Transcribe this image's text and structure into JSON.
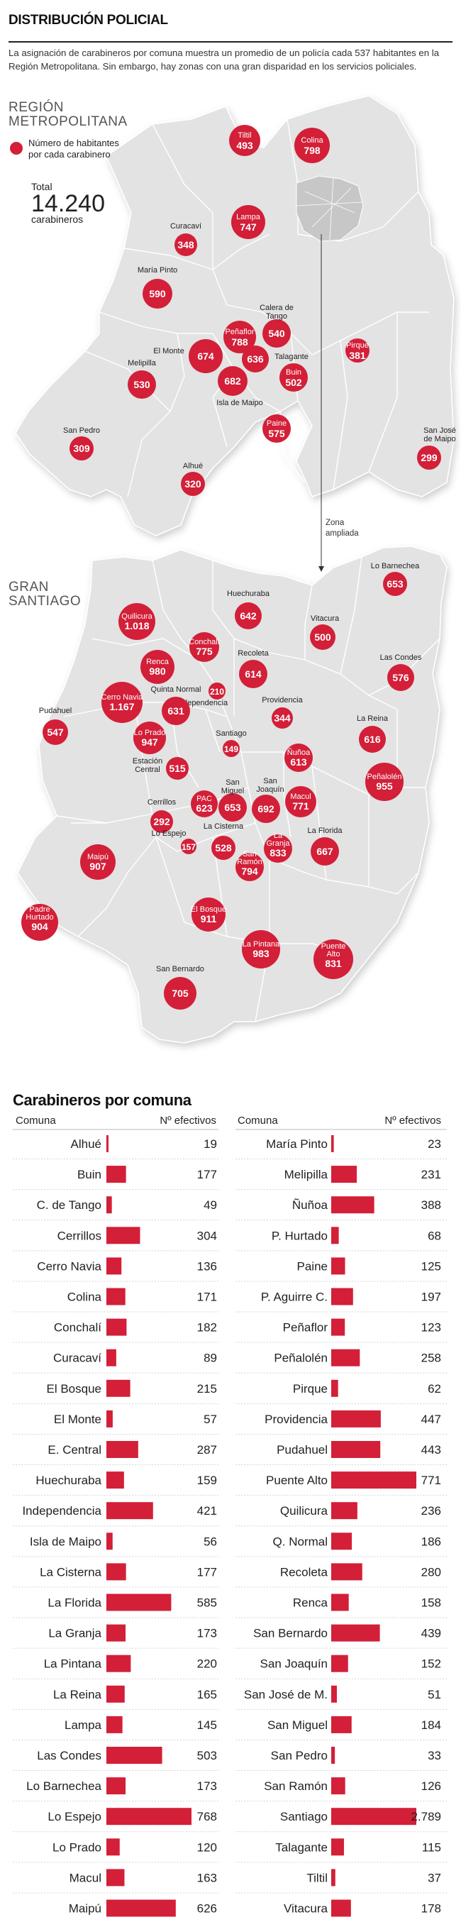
{
  "header": {
    "title": "DISTRIBUCIÓN POLICIAL",
    "intro": "La asignación de carabineros por comuna muestra un promedio de un policía cada 537 habitantes en la Región Metropolitana. Sin embargo, hay zonas con una gran disparidad en los servicios policiales."
  },
  "region_map": {
    "label_line1": "REGIÓN",
    "label_line2": "METROPOLITANA",
    "legend_line1": "Número de habitantes",
    "legend_line2": "por cada carabinero",
    "total_label": "Total",
    "total_value": "14.240",
    "total_unit": "carabineros",
    "zona_line1": "Zona",
    "zona_line2": "ampliada",
    "colors": {
      "bubble": "#d31f38",
      "land": "#e3e3e3",
      "border": "#ffffff",
      "accent": "#d31f38"
    },
    "bubbles": [
      {
        "name": "Tiltil",
        "value": "493",
        "name_inside": true
      },
      {
        "name": "Colina",
        "value": "798",
        "name_inside": true
      },
      {
        "name": "Lampa",
        "value": "747",
        "name_inside": true
      },
      {
        "name": "Curacaví",
        "value": "348",
        "name_inside": false
      },
      {
        "name": "María Pinto",
        "value": "590",
        "name_inside": false
      },
      {
        "name": "Calera de Tango",
        "value": "540",
        "name_inside": false
      },
      {
        "name": "Peñaflor",
        "value": "788",
        "name_inside": true
      },
      {
        "name": "El Monte",
        "value": "674",
        "name_inside": false
      },
      {
        "name": "",
        "value": "636",
        "name_inside": false
      },
      {
        "name": "",
        "value": "682",
        "name_inside": false
      },
      {
        "name": "Talagante",
        "value": "",
        "name_inside": false
      },
      {
        "name": "Buin",
        "value": "502",
        "name_inside": true
      },
      {
        "name": "Pirque",
        "value": "381",
        "name_inside": true
      },
      {
        "name": "Melipilla",
        "value": "530",
        "name_inside": false
      },
      {
        "name": "Isla de Maipo",
        "value": "",
        "name_inside": false
      },
      {
        "name": "Paine",
        "value": "575",
        "name_inside": true
      },
      {
        "name": "San Pedro",
        "value": "309",
        "name_inside": false
      },
      {
        "name": "Alhué",
        "value": "320",
        "name_inside": false
      },
      {
        "name": "San José de Maipo",
        "value": "299",
        "name_inside": false
      }
    ]
  },
  "santiago_map": {
    "label_line1": "GRAN",
    "label_line2": "SANTIAGO",
    "bubbles": [
      {
        "name": "Lo Barnechea",
        "value": "653"
      },
      {
        "name": "Huechuraba",
        "value": "642"
      },
      {
        "name": "Vitacura",
        "value": "500"
      },
      {
        "name": "Quilicura",
        "value": "1.018"
      },
      {
        "name": "Conchalí",
        "value": "775"
      },
      {
        "name": "Renca",
        "value": "980"
      },
      {
        "name": "Recoleta",
        "value": "614"
      },
      {
        "name": "Las Condes",
        "value": "576"
      },
      {
        "name": "Quinta Normal",
        "value": ""
      },
      {
        "name": "Independencia",
        "value": "210"
      },
      {
        "name": "Cerro Navia",
        "value": "1.167"
      },
      {
        "name": "",
        "value": "631"
      },
      {
        "name": "Providencia",
        "value": "344"
      },
      {
        "name": "Pudahuel",
        "value": "547"
      },
      {
        "name": "Lo Prado",
        "value": "947"
      },
      {
        "name": "La Reina",
        "value": "616"
      },
      {
        "name": "Santiago",
        "value": "149"
      },
      {
        "name": "Estación Central",
        "value": "515"
      },
      {
        "name": "Ñuñoa",
        "value": "613"
      },
      {
        "name": "Peñalolén",
        "value": "955"
      },
      {
        "name": "Macul",
        "value": "771"
      },
      {
        "name": "San Miguel",
        "value": "653"
      },
      {
        "name": "San Joaquín",
        "value": "692"
      },
      {
        "name": "PAC",
        "value": "623"
      },
      {
        "name": "Cerrillos",
        "value": "292"
      },
      {
        "name": "Lo Espejo",
        "value": "157"
      },
      {
        "name": "La Cisterna",
        "value": "528"
      },
      {
        "name": "La Granja",
        "value": "833"
      },
      {
        "name": "La Florida",
        "value": "667"
      },
      {
        "name": "Maipú",
        "value": "907"
      },
      {
        "name": "San Ramón",
        "value": "794"
      },
      {
        "name": "Padre Hurtado",
        "value": "904"
      },
      {
        "name": "El Bosque",
        "value": "911"
      },
      {
        "name": "La Pintana",
        "value": "983"
      },
      {
        "name": "Puente Alto",
        "value": "831"
      },
      {
        "name": "San Bernardo",
        "value": "705"
      }
    ]
  },
  "chart_data": {
    "type": "bar",
    "title": "Carabineros por comuna",
    "col_comuna": "Comuna",
    "col_efectivos": "Nº efectivos",
    "bar_color": "#d31f38",
    "left": [
      {
        "name": "Alhué",
        "value": 19,
        "label": "19"
      },
      {
        "name": "Buin",
        "value": 177,
        "label": "177"
      },
      {
        "name": "C. de Tango",
        "value": 49,
        "label": "49"
      },
      {
        "name": "Cerrillos",
        "value": 304,
        "label": "304"
      },
      {
        "name": "Cerro Navia",
        "value": 136,
        "label": "136"
      },
      {
        "name": "Colina",
        "value": 171,
        "label": "171"
      },
      {
        "name": "Conchalí",
        "value": 182,
        "label": "182"
      },
      {
        "name": "Curacaví",
        "value": 89,
        "label": "89"
      },
      {
        "name": "El Bosque",
        "value": 215,
        "label": "215"
      },
      {
        "name": "El Monte",
        "value": 57,
        "label": "57"
      },
      {
        "name": "E. Central",
        "value": 287,
        "label": "287"
      },
      {
        "name": "Huechuraba",
        "value": 159,
        "label": "159"
      },
      {
        "name": "Independencia",
        "value": 421,
        "label": "421"
      },
      {
        "name": "Isla de Maipo",
        "value": 56,
        "label": "56"
      },
      {
        "name": "La Cisterna",
        "value": 177,
        "label": "177"
      },
      {
        "name": "La Florida",
        "value": 585,
        "label": "585"
      },
      {
        "name": "La Granja",
        "value": 173,
        "label": "173"
      },
      {
        "name": "La Pintana",
        "value": 220,
        "label": "220"
      },
      {
        "name": "La Reina",
        "value": 165,
        "label": "165"
      },
      {
        "name": "Lampa",
        "value": 145,
        "label": "145"
      },
      {
        "name": "Las Condes",
        "value": 503,
        "label": "503"
      },
      {
        "name": "Lo Barnechea",
        "value": 173,
        "label": "173"
      },
      {
        "name": "Lo Espejo",
        "value": 768,
        "label": "768"
      },
      {
        "name": "Lo Prado",
        "value": 120,
        "label": "120"
      },
      {
        "name": "Macul",
        "value": 163,
        "label": "163"
      },
      {
        "name": "Maipú",
        "value": 626,
        "label": "626"
      }
    ],
    "right": [
      {
        "name": "María Pinto",
        "value": 23,
        "label": "23"
      },
      {
        "name": "Melipilla",
        "value": 231,
        "label": "231"
      },
      {
        "name": "Ñuñoa",
        "value": 388,
        "label": "388"
      },
      {
        "name": "P. Hurtado",
        "value": 68,
        "label": "68"
      },
      {
        "name": "Paine",
        "value": 125,
        "label": "125"
      },
      {
        "name": "P. Aguirre C.",
        "value": 197,
        "label": "197"
      },
      {
        "name": "Peñaflor",
        "value": 123,
        "label": "123"
      },
      {
        "name": "Peñalolén",
        "value": 258,
        "label": "258"
      },
      {
        "name": "Pirque",
        "value": 62,
        "label": "62"
      },
      {
        "name": "Providencia",
        "value": 447,
        "label": "447"
      },
      {
        "name": "Pudahuel",
        "value": 443,
        "label": "443"
      },
      {
        "name": "Puente Alto",
        "value": 771,
        "label": "771"
      },
      {
        "name": "Quilicura",
        "value": 236,
        "label": "236"
      },
      {
        "name": "Q. Normal",
        "value": 186,
        "label": "186"
      },
      {
        "name": "Recoleta",
        "value": 280,
        "label": "280"
      },
      {
        "name": "Renca",
        "value": 158,
        "label": "158"
      },
      {
        "name": "San Bernardo",
        "value": 439,
        "label": "439"
      },
      {
        "name": "San Joaquín",
        "value": 152,
        "label": "152"
      },
      {
        "name": "San José de M.",
        "value": 51,
        "label": "51"
      },
      {
        "name": "San Miguel",
        "value": 184,
        "label": "184"
      },
      {
        "name": "San Pedro",
        "value": 33,
        "label": "33"
      },
      {
        "name": "San Ramón",
        "value": 126,
        "label": "126"
      },
      {
        "name": "Santiago",
        "value": 2789,
        "label": "2.789"
      },
      {
        "name": "Talagante",
        "value": 115,
        "label": "115"
      },
      {
        "name": "Tiltil",
        "value": 37,
        "label": "37"
      },
      {
        "name": "Vitacura",
        "value": 178,
        "label": "178"
      }
    ]
  }
}
